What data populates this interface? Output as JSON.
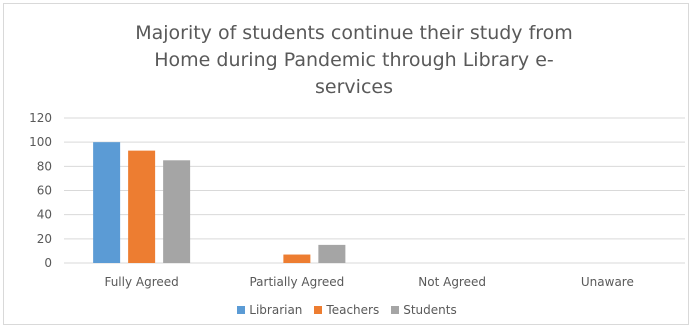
{
  "chart_data": {
    "type": "bar",
    "title": "Majority of students continue their study from Home during Pandemic through Library e-services",
    "title_lines": [
      "Majority of students continue their study from",
      "Home during Pandemic through Library e-",
      "services"
    ],
    "categories": [
      "Fully Agreed",
      "Partially Agreed",
      "Not Agreed",
      "Unaware"
    ],
    "series": [
      {
        "name": "Librarian",
        "values": [
          100,
          0,
          0,
          0
        ],
        "color": "#5b9bd5"
      },
      {
        "name": "Teachers",
        "values": [
          93,
          7,
          0,
          0
        ],
        "color": "#ed7d31"
      },
      {
        "name": "Students",
        "values": [
          85,
          15,
          0,
          0
        ],
        "color": "#a5a5a5"
      }
    ],
    "xlabel": "",
    "ylabel": "",
    "ylim": [
      0,
      120
    ],
    "yticks": [
      0,
      20,
      40,
      60,
      80,
      100,
      120
    ],
    "grid": true,
    "legend_position": "bottom"
  }
}
